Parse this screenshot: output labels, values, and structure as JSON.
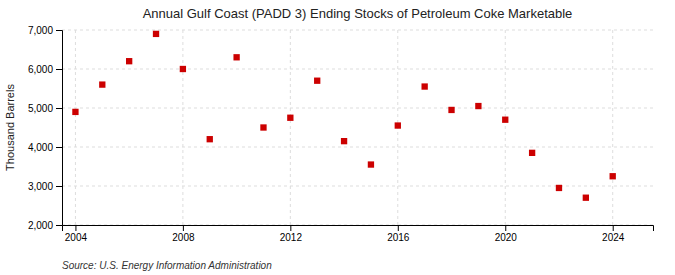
{
  "chart_data": {
    "type": "scatter",
    "title": "Annual Gulf Coast (PADD 3) Ending Stocks of Petroleum Coke Marketable",
    "y_label": "Thousand Barrels",
    "annotations": [
      "Source: U.S. Energy Information Administration"
    ],
    "x": [
      2004,
      2005,
      2006,
      2007,
      2008,
      2009,
      2010,
      2011,
      2012,
      2013,
      2014,
      2015,
      2016,
      2017,
      2018,
      2019,
      2020,
      2021,
      2022,
      2023,
      2024
    ],
    "values": [
      4900,
      5600,
      6200,
      6900,
      6000,
      4200,
      6300,
      4500,
      4750,
      5700,
      4150,
      3550,
      4550,
      5550,
      4950,
      5050,
      4700,
      3850,
      2950,
      2700,
      3250
    ],
    "color": "#cc0000",
    "marker": "square",
    "xlim": [
      2003.5,
      2025.5
    ],
    "xticks": [
      2004,
      2008,
      2012,
      2016,
      2020,
      2024
    ],
    "ylim": [
      2000,
      7000
    ],
    "yticks": [
      {
        "value": 2000,
        "label": "2,000"
      },
      {
        "value": 3000,
        "label": "3,000"
      },
      {
        "value": 4000,
        "label": "4,000"
      },
      {
        "value": 5000,
        "label": "5,000"
      },
      {
        "value": 6000,
        "label": "6,000"
      },
      {
        "value": 7000,
        "label": "7,000"
      }
    ],
    "grid": true
  }
}
